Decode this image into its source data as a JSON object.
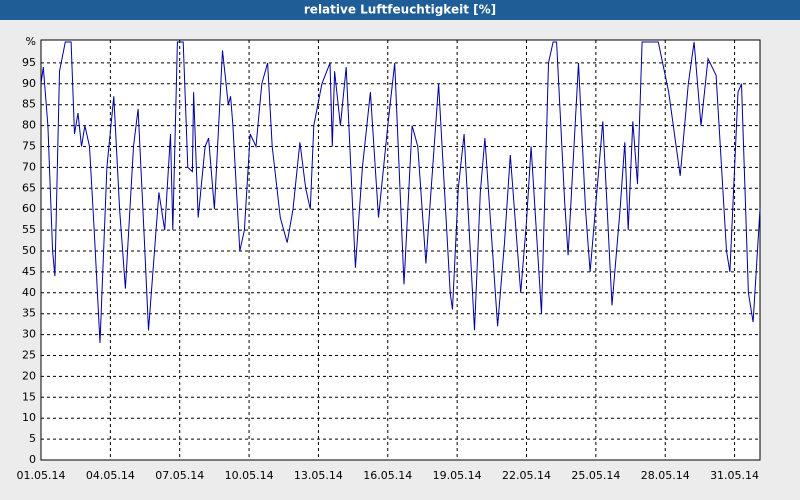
{
  "chart_data": {
    "type": "line",
    "title": "relative Luftfeuchtigkeit [%]",
    "x": [
      0,
      0.1,
      0.3,
      0.5,
      0.6,
      0.8,
      1.05,
      1.3,
      1.45,
      1.6,
      1.75,
      1.9,
      2.1,
      2.3,
      2.55,
      2.85,
      3.15,
      3.4,
      3.65,
      4.0,
      4.2,
      4.45,
      4.65,
      5.1,
      5.35,
      5.6,
      5.7,
      5.9,
      6.15,
      6.35,
      6.55,
      6.6,
      6.8,
      7.1,
      7.25,
      7.5,
      7.85,
      8.1,
      8.2,
      8.3,
      8.6,
      8.8,
      9.05,
      9.3,
      9.55,
      9.8,
      10.0,
      10.35,
      10.65,
      10.9,
      11.2,
      11.45,
      11.65,
      11.8,
      12.15,
      12.5,
      12.6,
      12.7,
      12.95,
      13.2,
      13.6,
      13.9,
      14.25,
      14.6,
      15.0,
      15.3,
      15.7,
      16.05,
      16.3,
      16.65,
      17.2,
      17.7,
      17.8,
      18.05,
      18.3,
      18.75,
      19.0,
      19.2,
      19.75,
      20.05,
      20.3,
      20.75,
      21.0,
      21.2,
      21.65,
      21.95,
      22.15,
      22.3,
      22.65,
      22.8,
      23.25,
      23.55,
      23.75,
      23.95,
      24.3,
      24.7,
      25.05,
      25.25,
      25.4,
      25.6,
      25.8,
      26.0,
      26.7,
      27.15,
      27.65,
      28.0,
      28.25,
      28.55,
      28.85,
      29.2,
      29.65,
      29.8,
      30.15,
      30.3,
      30.6,
      30.8,
      31.1
    ],
    "series": [
      {
        "color": "#0000a0",
        "values": [
          90,
          94,
          80,
          50,
          44,
          93,
          100,
          100,
          78,
          83,
          75,
          80,
          75,
          55,
          28,
          70,
          87,
          60,
          41,
          75,
          84,
          55,
          31,
          64,
          55,
          78,
          55,
          100,
          100,
          70,
          69,
          88,
          58,
          75,
          77,
          60,
          98,
          85,
          87,
          80,
          50,
          55,
          78,
          75,
          90,
          95,
          75,
          58,
          52,
          60,
          76,
          65,
          60,
          80,
          90,
          95,
          75,
          93,
          80,
          94,
          46,
          70,
          88,
          58,
          80,
          95,
          42,
          80,
          75,
          47,
          90,
          40,
          36,
          65,
          78,
          31,
          64,
          77,
          32,
          52,
          73,
          40,
          57,
          75,
          35,
          95,
          100,
          100,
          62,
          49,
          95,
          60,
          45,
          58,
          81,
          37,
          60,
          76,
          55,
          81,
          66,
          100,
          100,
          88,
          68,
          90,
          100,
          80,
          96,
          92,
          50,
          45,
          88,
          90,
          40,
          33,
          60
        ]
      }
    ],
    "xlim": [
      0,
      31.1
    ],
    "xticks": [
      {
        "value": 0,
        "label": "01.05.14"
      },
      {
        "value": 3,
        "label": "04.05.14"
      },
      {
        "value": 6,
        "label": "07.05.14"
      },
      {
        "value": 9,
        "label": "10.05.14"
      },
      {
        "value": 12,
        "label": "13.05.14"
      },
      {
        "value": 15,
        "label": "16.05.14"
      },
      {
        "value": 18,
        "label": "19.05.14"
      },
      {
        "value": 21,
        "label": "22.05.14"
      },
      {
        "value": 24,
        "label": "25.05.14"
      },
      {
        "value": 27,
        "label": "28.05.14"
      },
      {
        "value": 30,
        "label": "31.05.14"
      }
    ],
    "ylim": [
      0,
      100
    ],
    "yticks": [
      0,
      5,
      10,
      15,
      20,
      25,
      30,
      35,
      40,
      45,
      50,
      55,
      60,
      65,
      70,
      75,
      80,
      85,
      90,
      95,
      {
        "value": 100,
        "label": "%"
      }
    ],
    "grid": true
  }
}
